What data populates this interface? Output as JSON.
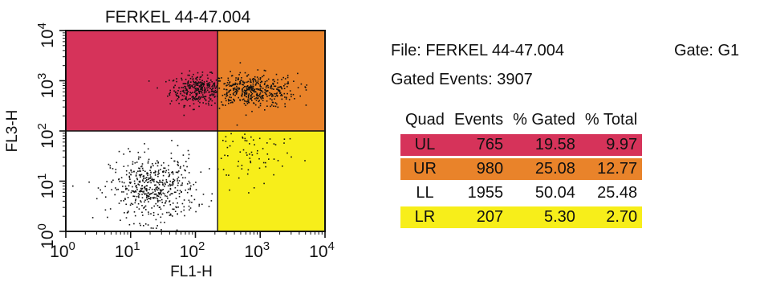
{
  "chart_data": {
    "type": "scatter",
    "title": "FERKEL 44-47.004",
    "xlabel": "FL1-H",
    "ylabel": "FL3-H",
    "x_scale": "log",
    "y_scale": "log",
    "xlim": [
      1,
      10000
    ],
    "ylim": [
      1,
      10000
    ],
    "xticks": [
      {
        "base": "10",
        "exp": "0"
      },
      {
        "base": "10",
        "exp": "1"
      },
      {
        "base": "10",
        "exp": "2"
      },
      {
        "base": "10",
        "exp": "3"
      },
      {
        "base": "10",
        "exp": "4"
      }
    ],
    "yticks": [
      {
        "base": "10",
        "exp": "0"
      },
      {
        "base": "10",
        "exp": "1"
      },
      {
        "base": "10",
        "exp": "2"
      },
      {
        "base": "10",
        "exp": "3"
      },
      {
        "base": "10",
        "exp": "4"
      }
    ],
    "quadrant_divider": {
      "x": 220,
      "y": 100
    },
    "quadrant_colors": {
      "UL": "#d6335a",
      "UR": "#e9832a",
      "LL": "#ffffff",
      "LR": "#f7ee1a"
    },
    "point_color": "#111111",
    "point_clusters": [
      {
        "quad": "UL",
        "n": 310,
        "x_log_mean": 2.05,
        "x_log_sd": 0.22,
        "y_log_mean": 2.82,
        "y_log_sd": 0.15
      },
      {
        "quad": "UR",
        "n": 420,
        "x_log_mean": 2.85,
        "x_log_sd": 0.36,
        "y_log_mean": 2.8,
        "y_log_sd": 0.17
      },
      {
        "quad": "LL",
        "n": 520,
        "x_log_mean": 1.35,
        "x_log_sd": 0.33,
        "y_log_mean": 0.85,
        "y_log_sd": 0.33
      },
      {
        "quad": "LR",
        "n": 70,
        "x_log_mean": 2.8,
        "x_log_sd": 0.3,
        "y_log_mean": 1.55,
        "y_log_sd": 0.35
      }
    ]
  },
  "stats": {
    "file_label": "File: FERKEL 44-47.004",
    "gate_label": "Gate: G1",
    "events_label": "Gated Events: 3907",
    "columns": [
      "Quad",
      "Events",
      "% Gated",
      "% Total"
    ],
    "rows": [
      {
        "quad": "UL",
        "events": "765",
        "pct_gated": "19.58",
        "pct_total": "9.97",
        "color": "#d6335a"
      },
      {
        "quad": "UR",
        "events": "980",
        "pct_gated": "25.08",
        "pct_total": "12.77",
        "color": "#e9832a"
      },
      {
        "quad": "LL",
        "events": "1955",
        "pct_gated": "50.04",
        "pct_total": "25.48",
        "color": "#ffffff"
      },
      {
        "quad": "LR",
        "events": "207",
        "pct_gated": "5.30",
        "pct_total": "2.70",
        "color": "#f7ee1a"
      }
    ]
  }
}
